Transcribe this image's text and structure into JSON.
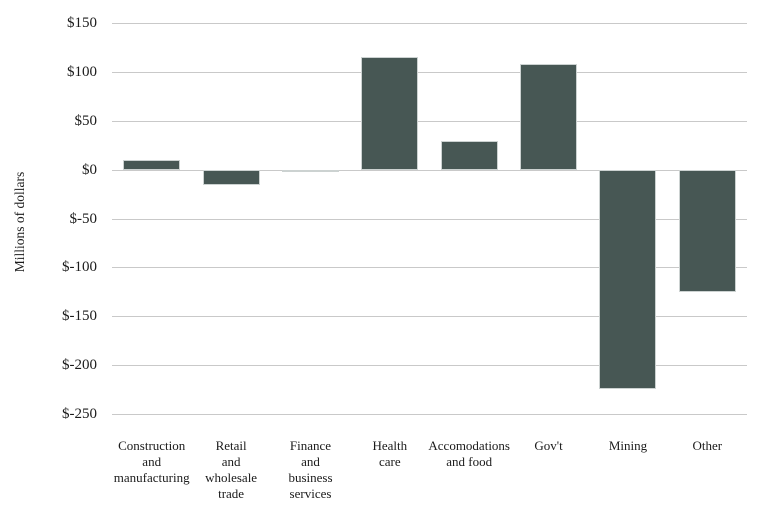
{
  "chart_data": {
    "type": "bar",
    "title": "",
    "xlabel": "",
    "ylabel": "Millions of dollars",
    "categories": [
      "Construction and manufacturing",
      "Retail and wholesale trade",
      "Finance and business services",
      "Health care",
      "Accomodations and food",
      "Gov't",
      "Mining",
      "Other"
    ],
    "category_label_lines": [
      [
        "Construction",
        "and",
        "manufacturing"
      ],
      [
        "Retail",
        "and",
        "wholesale",
        "trade"
      ],
      [
        "Finance",
        "and",
        "business",
        "services"
      ],
      [
        "Health",
        "care"
      ],
      [
        "Accomodations",
        "and food"
      ],
      [
        "Gov't"
      ],
      [
        "Mining"
      ],
      [
        "Other"
      ]
    ],
    "values": [
      10,
      -16,
      -3,
      115,
      29,
      108,
      -225,
      -125
    ],
    "ylim": [
      -250,
      150
    ],
    "ytick_values": [
      150,
      100,
      50,
      0,
      -50,
      -100,
      -150,
      -200,
      -250
    ],
    "ytick_labels": [
      "$150",
      "$100",
      "$50",
      "$0",
      "$-50",
      "$-100",
      "$-150",
      "$-200",
      "$-250"
    ],
    "grid": true,
    "legend": "none",
    "colors": {
      "bar_fill": "#475754",
      "bar_border": "#ccd2d1",
      "gridline": "#c9c9c9",
      "text": "#1b1b1b",
      "background": "#ffffff"
    }
  }
}
